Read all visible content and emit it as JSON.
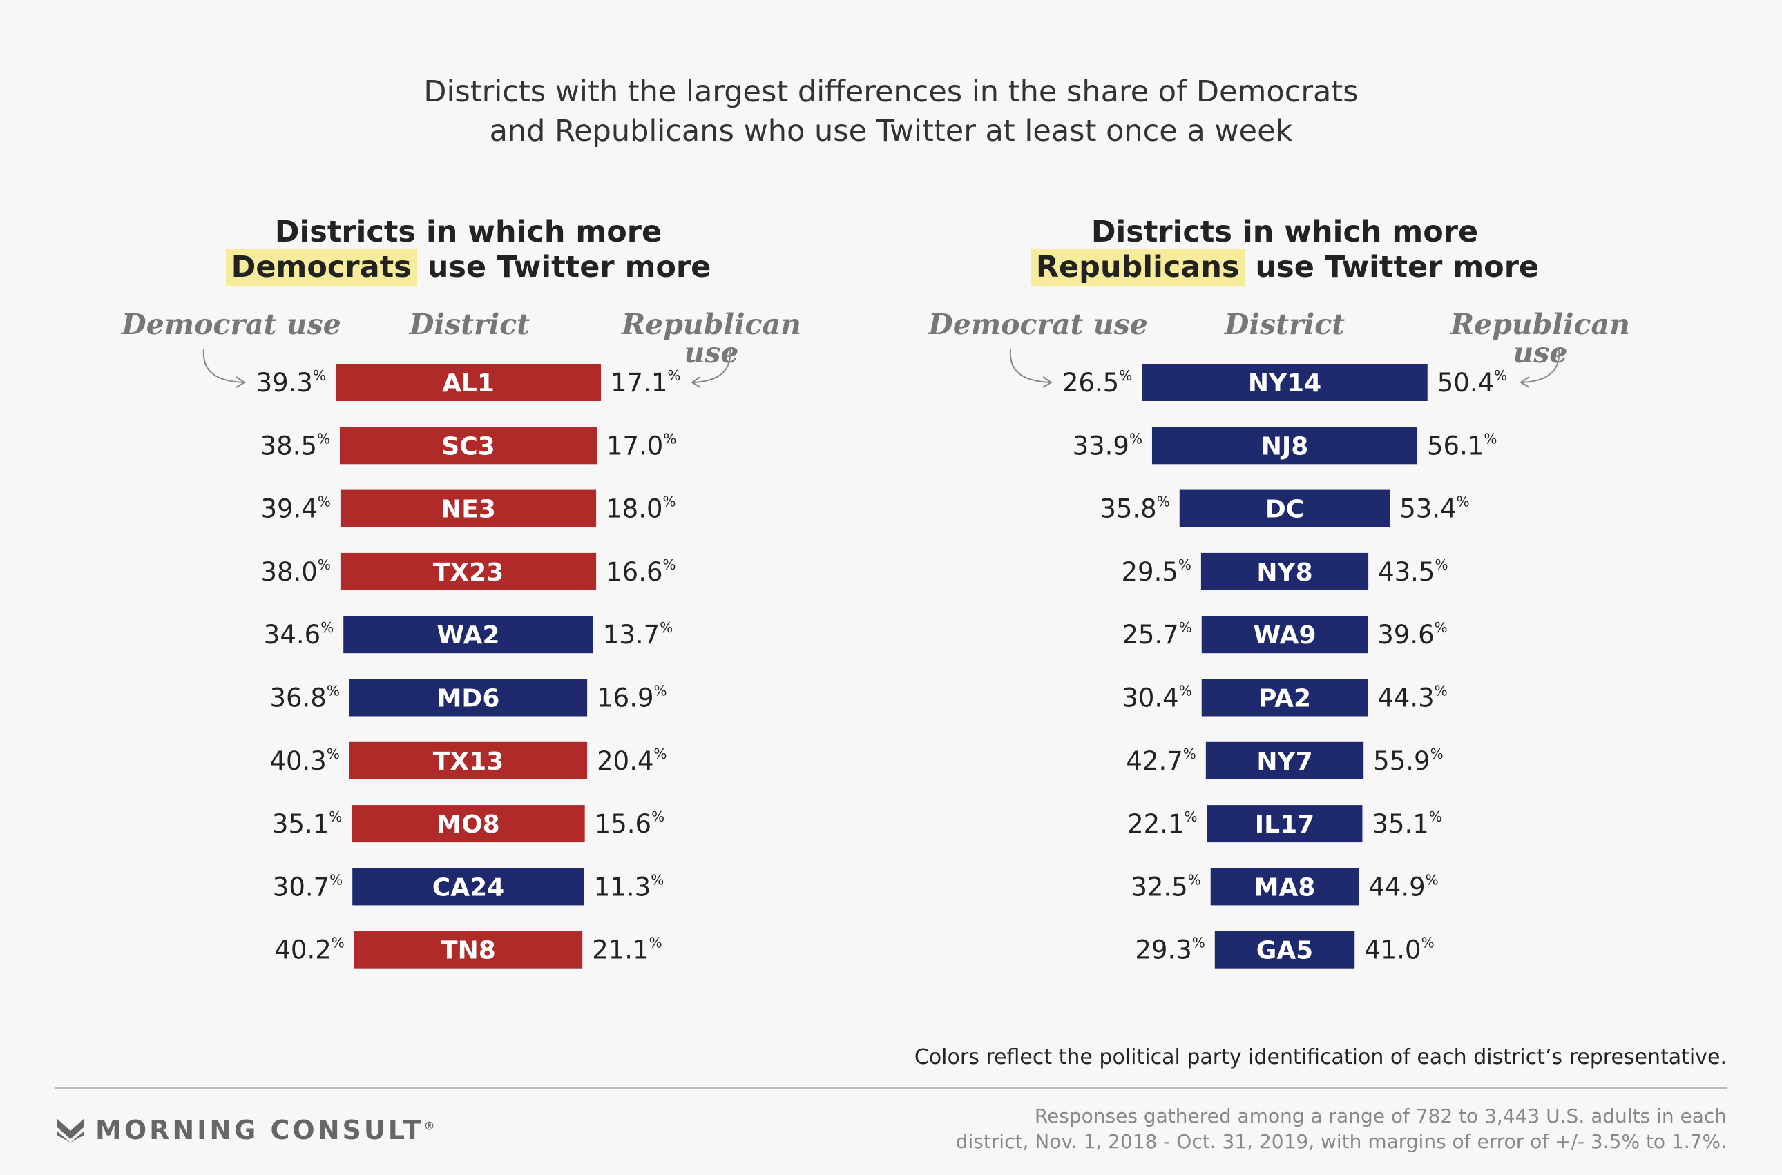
{
  "title_lines": [
    "Districts with the largest differences in the share of Democrats",
    "and Republicans who use Twitter at least once a week"
  ],
  "colors": {
    "dem": "#1f2a6e",
    "rep": "#b02a2a",
    "highlight": "#f7ec9b"
  },
  "chart_data": [
    {
      "type": "bar",
      "heading_line1": "Districts in which more",
      "heading_highlight": "Democrats",
      "heading_rest": " use Twitter more",
      "col_left": "Democrat use",
      "col_mid": "District",
      "col_right": "Republican use",
      "categories": [
        "AL1",
        "SC3",
        "NE3",
        "TX23",
        "WA2",
        "MD6",
        "TX13",
        "MO8",
        "CA24",
        "TN8"
      ],
      "democrat_use": [
        39.3,
        38.5,
        39.4,
        38.0,
        34.6,
        36.8,
        40.3,
        35.1,
        30.7,
        40.2
      ],
      "republican_use": [
        17.1,
        17.0,
        18.0,
        16.6,
        13.7,
        16.9,
        20.4,
        15.6,
        11.3,
        21.1
      ],
      "democrat_labels": [
        "39.3",
        "38.5",
        "39.4",
        "38.0",
        "34.6",
        "36.8",
        "40.3",
        "35.1",
        "30.7",
        "40.2"
      ],
      "republican_labels": [
        "17.1",
        "17.0",
        "18.0",
        "16.6",
        "13.7",
        "16.9",
        "20.4",
        "15.6",
        "11.3",
        "21.1"
      ],
      "representative_party": [
        "rep",
        "rep",
        "rep",
        "rep",
        "dem",
        "dem",
        "rep",
        "rep",
        "dem",
        "rep"
      ]
    },
    {
      "type": "bar",
      "heading_line1": "Districts in which more",
      "heading_highlight": "Republicans",
      "heading_rest": " use Twitter more",
      "col_left": "Democrat use",
      "col_mid": "District",
      "col_right": "Republican use",
      "categories": [
        "NY14",
        "NJ8",
        "DC",
        "NY8",
        "WA9",
        "PA2",
        "NY7",
        "IL17",
        "MA8",
        "GA5"
      ],
      "democrat_use": [
        26.5,
        33.9,
        35.8,
        29.5,
        25.7,
        30.4,
        42.7,
        22.1,
        32.5,
        29.3
      ],
      "republican_use": [
        50.4,
        56.1,
        53.4,
        43.5,
        39.6,
        44.3,
        55.9,
        35.1,
        44.9,
        41.0
      ],
      "democrat_labels": [
        "26.5",
        "33.9",
        "35.8",
        "29.5",
        "25.7",
        "30.4",
        "42.7",
        "22.1",
        "32.5",
        "29.3"
      ],
      "republican_labels": [
        "50.4",
        "56.1",
        "53.4",
        "43.5",
        "39.6",
        "44.3",
        "55.9",
        "35.1",
        "44.9",
        "41.0"
      ],
      "representative_party": [
        "dem",
        "dem",
        "dem",
        "dem",
        "dem",
        "dem",
        "dem",
        "dem",
        "dem",
        "dem"
      ]
    }
  ],
  "percent_sign": "%",
  "footnote": "Colors reflect the political party identification of each district’s representative.",
  "source_lines": [
    "Responses gathered among a range of 782 to 3,443 U.S. adults in each",
    "district, Nov. 1, 2018 - Oct. 31, 2019, with margins of error of +/- 3.5% to 1.7%."
  ],
  "logo": {
    "name": "MORNING CONSULT",
    "reg": "®"
  }
}
